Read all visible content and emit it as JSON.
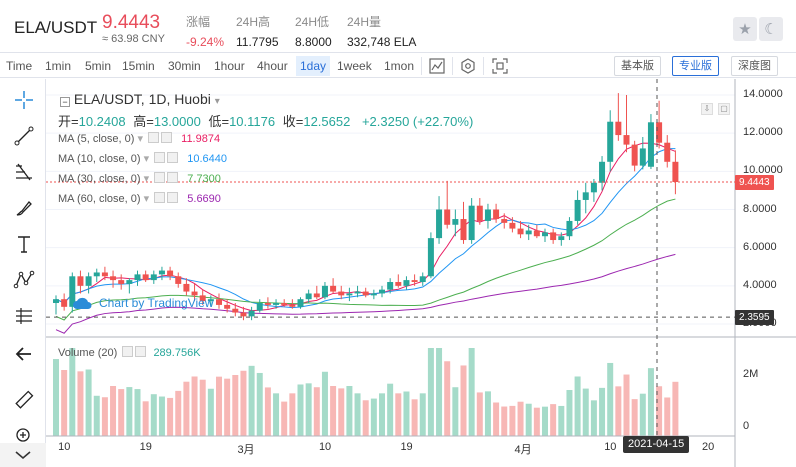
{
  "header": {
    "pair": "ELA/USDT",
    "price": "9.4443",
    "cny": "≈ 63.98 CNY",
    "stats": [
      {
        "label": "涨幅",
        "value": "-9.24%",
        "red": true
      },
      {
        "label": "24H高",
        "value": "11.7795",
        "red": false
      },
      {
        "label": "24H低",
        "value": "8.8000",
        "red": false
      },
      {
        "label": "24H量",
        "value": "332,748 ELA",
        "red": false
      }
    ],
    "icons": [
      "star-icon",
      "moon-icon"
    ]
  },
  "toolbar": {
    "intervals": [
      "Time",
      "1min",
      "5min",
      "15min",
      "30min",
      "1hour",
      "4hour",
      "1day",
      "1week",
      "1mon"
    ],
    "active_interval": "1day",
    "views": [
      "基本版",
      "专业版",
      "深度图"
    ],
    "active_view": "专业版"
  },
  "chart": {
    "title": "ELA/USDT, 1D, Huobi",
    "ohlc": {
      "open_label": "开",
      "open": "10.2408",
      "high_label": "高",
      "high": "13.0000",
      "low_label": "低",
      "low": "10.1176",
      "close_label": "收",
      "close": "12.5652",
      "change": "+2.3250 (+22.70%)"
    },
    "ma": [
      {
        "label": "MA (5, close, 0)",
        "value": "11.9874",
        "color": "#e91e63"
      },
      {
        "label": "MA (10, close, 0)",
        "value": "10.6440",
        "color": "#2196f3"
      },
      {
        "label": "MA (30, close, 0)",
        "value": "7.7300",
        "color": "#4caf50"
      },
      {
        "label": "MA (60, close, 0)",
        "value": "5.6690",
        "color": "#9c27b0"
      }
    ],
    "watermark": "Chart by TradingView",
    "price_axis": [
      "14.0000",
      "12.0000",
      "10.0000",
      "8.0000",
      "6.0000",
      "4.0000",
      "2.0000"
    ],
    "last_price_tag": "9.4443",
    "crosshair_price_tag": "2.3595",
    "volume_label": "Volume (20)",
    "volume_value": "289.756K",
    "volume_axis": [
      "2M",
      "0"
    ],
    "time_axis": [
      "10",
      "19",
      "3月",
      "10",
      "19",
      "4月",
      "10",
      "20"
    ],
    "crosshair_date": "2021-04-15",
    "colors": {
      "up": "#26a69a",
      "down": "#ef5350",
      "up_vol": "#a5dbc9",
      "down_vol": "#f7b7b5"
    }
  },
  "chart_data": {
    "type": "candlestick",
    "title": "ELA/USDT, 1D, Huobi",
    "ylim": [
      1.0,
      15.0
    ],
    "candles": [
      [
        3.1,
        3.5,
        2.5,
        3.3
      ],
      [
        3.3,
        3.6,
        2.7,
        2.9
      ],
      [
        2.9,
        4.7,
        2.6,
        4.5
      ],
      [
        4.5,
        4.8,
        3.6,
        4.0
      ],
      [
        4.0,
        4.7,
        3.6,
        4.5
      ],
      [
        4.5,
        4.9,
        4.2,
        4.7
      ],
      [
        4.7,
        5.0,
        4.3,
        4.5
      ],
      [
        4.5,
        4.8,
        3.9,
        4.3
      ],
      [
        4.3,
        4.6,
        3.8,
        4.1
      ],
      [
        4.1,
        4.4,
        3.6,
        4.3
      ],
      [
        4.3,
        4.8,
        4.0,
        4.6
      ],
      [
        4.6,
        4.8,
        4.2,
        4.3
      ],
      [
        4.3,
        4.8,
        4.1,
        4.6
      ],
      [
        4.6,
        5.0,
        4.3,
        4.8
      ],
      [
        4.8,
        5.0,
        4.3,
        4.5
      ],
      [
        4.5,
        4.7,
        3.9,
        4.1
      ],
      [
        4.1,
        4.4,
        3.5,
        3.7
      ],
      [
        3.7,
        4.1,
        3.2,
        3.5
      ],
      [
        3.5,
        3.8,
        3.0,
        3.2
      ],
      [
        3.2,
        3.5,
        2.9,
        3.3
      ],
      [
        3.3,
        3.6,
        2.8,
        3.0
      ],
      [
        3.0,
        3.3,
        2.6,
        2.8
      ],
      [
        2.8,
        3.1,
        2.4,
        2.6
      ],
      [
        2.6,
        2.9,
        2.2,
        2.4
      ],
      [
        2.4,
        2.9,
        2.2,
        2.7
      ],
      [
        2.7,
        3.3,
        2.6,
        3.1
      ],
      [
        3.1,
        3.4,
        2.8,
        3.0
      ],
      [
        3.0,
        3.3,
        2.8,
        3.1
      ],
      [
        3.1,
        3.3,
        2.9,
        3.0
      ],
      [
        3.0,
        3.3,
        2.8,
        2.9
      ],
      [
        2.9,
        3.4,
        2.8,
        3.3
      ],
      [
        3.3,
        3.8,
        3.1,
        3.6
      ],
      [
        3.6,
        4.0,
        3.3,
        3.4
      ],
      [
        3.4,
        4.2,
        3.3,
        4.0
      ],
      [
        4.0,
        4.4,
        3.6,
        3.7
      ],
      [
        3.7,
        4.0,
        3.3,
        3.5
      ],
      [
        3.5,
        3.9,
        3.2,
        3.6
      ],
      [
        3.6,
        4.0,
        3.4,
        3.7
      ],
      [
        3.7,
        3.9,
        3.4,
        3.5
      ],
      [
        3.5,
        3.8,
        3.3,
        3.6
      ],
      [
        3.6,
        4.0,
        3.4,
        3.8
      ],
      [
        3.8,
        4.4,
        3.6,
        4.2
      ],
      [
        4.2,
        4.6,
        3.9,
        4.0
      ],
      [
        4.0,
        4.5,
        3.8,
        4.3
      ],
      [
        4.3,
        4.6,
        4.0,
        4.2
      ],
      [
        4.2,
        4.7,
        4.0,
        4.5
      ],
      [
        4.5,
        6.8,
        4.4,
        6.5
      ],
      [
        6.5,
        8.7,
        6.2,
        8.0
      ],
      [
        8.0,
        9.5,
        7.0,
        7.2
      ],
      [
        7.2,
        8.0,
        6.6,
        7.5
      ],
      [
        7.5,
        8.4,
        6.2,
        6.4
      ],
      [
        6.4,
        8.6,
        6.2,
        8.2
      ],
      [
        8.2,
        8.6,
        7.2,
        7.4
      ],
      [
        7.4,
        8.3,
        7.0,
        8.0
      ],
      [
        8.0,
        8.3,
        7.3,
        7.5
      ],
      [
        7.5,
        7.8,
        7.0,
        7.3
      ],
      [
        7.3,
        7.6,
        6.8,
        7.0
      ],
      [
        7.0,
        7.4,
        6.5,
        6.7
      ],
      [
        6.7,
        7.2,
        6.4,
        6.9
      ],
      [
        6.9,
        7.2,
        6.5,
        6.6
      ],
      [
        6.6,
        7.0,
        6.3,
        6.8
      ],
      [
        6.8,
        7.0,
        6.2,
        6.4
      ],
      [
        6.4,
        6.8,
        6.1,
        6.6
      ],
      [
        6.6,
        7.6,
        6.4,
        7.4
      ],
      [
        7.4,
        9.0,
        7.2,
        8.5
      ],
      [
        8.5,
        9.4,
        7.8,
        8.9
      ],
      [
        8.9,
        9.6,
        8.4,
        9.4
      ],
      [
        9.4,
        10.8,
        9.0,
        10.5
      ],
      [
        10.5,
        13.2,
        10.0,
        12.6
      ],
      [
        12.6,
        14.1,
        11.6,
        11.9
      ],
      [
        11.9,
        14.0,
        11.0,
        11.4
      ],
      [
        11.4,
        11.6,
        10.0,
        10.3
      ],
      [
        10.3,
        11.8,
        10.1,
        11.2
      ],
      [
        10.24,
        13.0,
        10.12,
        12.57
      ],
      [
        12.57,
        13.7,
        11.2,
        11.5
      ],
      [
        11.5,
        11.9,
        10.2,
        10.5
      ],
      [
        10.5,
        11.1,
        8.8,
        9.44
      ]
    ]
  }
}
